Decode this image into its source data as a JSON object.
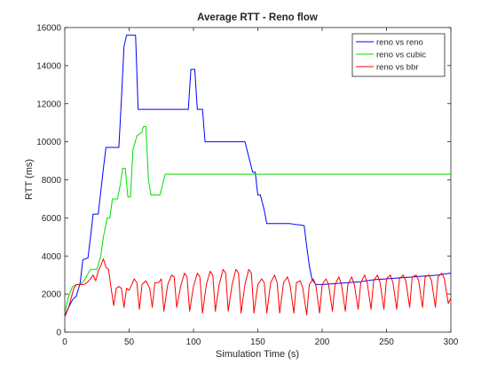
{
  "chart_data": {
    "type": "line",
    "title": "Average RTT - Reno flow",
    "xlabel": "Simulation Time (s)",
    "ylabel": "RTT (ms)",
    "xlim": [
      0,
      300
    ],
    "ylim": [
      0,
      16000
    ],
    "xticks": [
      0,
      50,
      100,
      150,
      200,
      250,
      300
    ],
    "yticks": [
      0,
      2000,
      4000,
      6000,
      8000,
      10000,
      12000,
      14000,
      16000
    ],
    "grid": false,
    "legend_position": "top-right",
    "series": [
      {
        "name": "reno vs reno",
        "color": "#0000ff",
        "points": [
          [
            0,
            900
          ],
          [
            3,
            1300
          ],
          [
            6,
            1700
          ],
          [
            9,
            1900
          ],
          [
            12,
            2600
          ],
          [
            14,
            3800
          ],
          [
            18,
            3900
          ],
          [
            20,
            5000
          ],
          [
            22,
            6200
          ],
          [
            26,
            6200
          ],
          [
            28,
            7400
          ],
          [
            30,
            8600
          ],
          [
            32,
            9700
          ],
          [
            34,
            9700
          ],
          [
            42,
            9700
          ],
          [
            44,
            12200
          ],
          [
            46,
            15000
          ],
          [
            48,
            15600
          ],
          [
            55,
            15600
          ],
          [
            57,
            11700
          ],
          [
            70,
            11700
          ],
          [
            90,
            11700
          ],
          [
            96,
            11700
          ],
          [
            98,
            13800
          ],
          [
            101,
            13800
          ],
          [
            103,
            11700
          ],
          [
            107,
            11700
          ],
          [
            109,
            10000
          ],
          [
            125,
            10000
          ],
          [
            140,
            10000
          ],
          [
            143,
            9200
          ],
          [
            146,
            8400
          ],
          [
            148,
            8400
          ],
          [
            150,
            7200
          ],
          [
            152,
            7200
          ],
          [
            155,
            6400
          ],
          [
            157,
            5700
          ],
          [
            165,
            5700
          ],
          [
            175,
            5700
          ],
          [
            186,
            5600
          ],
          [
            188,
            4500
          ],
          [
            190,
            3500
          ],
          [
            192,
            2800
          ],
          [
            195,
            2500
          ],
          [
            200,
            2500
          ],
          [
            210,
            2550
          ],
          [
            220,
            2600
          ],
          [
            230,
            2650
          ],
          [
            240,
            2750
          ],
          [
            250,
            2800
          ],
          [
            260,
            2850
          ],
          [
            270,
            2900
          ],
          [
            280,
            2950
          ],
          [
            290,
            3000
          ],
          [
            300,
            3100
          ]
        ]
      },
      {
        "name": "reno vs cubic",
        "color": "#00dd00",
        "points": [
          [
            0,
            1000
          ],
          [
            3,
            1900
          ],
          [
            6,
            2400
          ],
          [
            9,
            2500
          ],
          [
            12,
            2500
          ],
          [
            15,
            2700
          ],
          [
            20,
            3300
          ],
          [
            25,
            3300
          ],
          [
            28,
            4000
          ],
          [
            30,
            5000
          ],
          [
            33,
            6000
          ],
          [
            35,
            6000
          ],
          [
            37,
            7000
          ],
          [
            41,
            7000
          ],
          [
            43,
            7700
          ],
          [
            45,
            8600
          ],
          [
            47,
            8600
          ],
          [
            49,
            7100
          ],
          [
            51,
            7100
          ],
          [
            53,
            9600
          ],
          [
            56,
            10300
          ],
          [
            60,
            10500
          ],
          [
            61,
            10800
          ],
          [
            63,
            10800
          ],
          [
            65,
            8000
          ],
          [
            67,
            7200
          ],
          [
            74,
            7200
          ],
          [
            78,
            8300
          ],
          [
            100,
            8300
          ],
          [
            150,
            8300
          ],
          [
            200,
            8300
          ],
          [
            250,
            8300
          ],
          [
            300,
            8300
          ]
        ]
      },
      {
        "name": "reno vs bbr",
        "color": "#ff0000",
        "points": [
          [
            0,
            800
          ],
          [
            3,
            1300
          ],
          [
            5,
            1800
          ],
          [
            7,
            2300
          ],
          [
            9,
            2500
          ],
          [
            12,
            2500
          ],
          [
            15,
            2500
          ],
          [
            18,
            2650
          ],
          [
            20,
            2800
          ],
          [
            22,
            3000
          ],
          [
            24,
            2700
          ],
          [
            26,
            3200
          ],
          [
            28,
            3500
          ],
          [
            30,
            3850
          ],
          [
            32,
            3400
          ],
          [
            34,
            3300
          ],
          [
            36,
            2300
          ],
          [
            38,
            1400
          ],
          [
            40,
            2300
          ],
          [
            42,
            2400
          ],
          [
            44,
            2300
          ],
          [
            46,
            1300
          ],
          [
            48,
            2300
          ],
          [
            50,
            2200
          ],
          [
            52,
            2500
          ],
          [
            54,
            2800
          ],
          [
            56,
            2600
          ],
          [
            58,
            1200
          ],
          [
            60,
            2500
          ],
          [
            63,
            2700
          ],
          [
            66,
            2300
          ],
          [
            68,
            1300
          ],
          [
            70,
            2600
          ],
          [
            73,
            2600
          ],
          [
            75,
            2800
          ],
          [
            77,
            1100
          ],
          [
            80,
            2500
          ],
          [
            83,
            3000
          ],
          [
            85,
            2900
          ],
          [
            87,
            1300
          ],
          [
            90,
            2400
          ],
          [
            93,
            3100
          ],
          [
            95,
            2900
          ],
          [
            97,
            1100
          ],
          [
            100,
            2400
          ],
          [
            103,
            3100
          ],
          [
            105,
            2900
          ],
          [
            107,
            1000
          ],
          [
            110,
            2500
          ],
          [
            113,
            3200
          ],
          [
            115,
            3000
          ],
          [
            117,
            1100
          ],
          [
            120,
            2500
          ],
          [
            123,
            3300
          ],
          [
            125,
            3100
          ],
          [
            127,
            1100
          ],
          [
            130,
            2500
          ],
          [
            133,
            3300
          ],
          [
            135,
            3100
          ],
          [
            137,
            1000
          ],
          [
            140,
            2500
          ],
          [
            143,
            3300
          ],
          [
            145,
            3100
          ],
          [
            147,
            1000
          ],
          [
            150,
            2500
          ],
          [
            153,
            2800
          ],
          [
            155,
            2600
          ],
          [
            157,
            1000
          ],
          [
            160,
            2600
          ],
          [
            163,
            3000
          ],
          [
            165,
            2600
          ],
          [
            167,
            1000
          ],
          [
            170,
            2600
          ],
          [
            173,
            2900
          ],
          [
            175,
            2500
          ],
          [
            178,
            1000
          ],
          [
            180,
            2600
          ],
          [
            183,
            2700
          ],
          [
            185,
            2300
          ],
          [
            188,
            900
          ],
          [
            190,
            2500
          ],
          [
            193,
            2800
          ],
          [
            195,
            2500
          ],
          [
            198,
            1000
          ],
          [
            200,
            2500
          ],
          [
            203,
            2800
          ],
          [
            205,
            2500
          ],
          [
            208,
            1100
          ],
          [
            210,
            2500
          ],
          [
            213,
            2900
          ],
          [
            215,
            2500
          ],
          [
            218,
            1100
          ],
          [
            220,
            2500
          ],
          [
            223,
            2900
          ],
          [
            225,
            2500
          ],
          [
            228,
            1200
          ],
          [
            230,
            2600
          ],
          [
            233,
            3000
          ],
          [
            235,
            2600
          ],
          [
            238,
            1200
          ],
          [
            240,
            2700
          ],
          [
            243,
            3000
          ],
          [
            245,
            2600
          ],
          [
            248,
            1200
          ],
          [
            250,
            2800
          ],
          [
            253,
            3000
          ],
          [
            255,
            2600
          ],
          [
            258,
            1200
          ],
          [
            260,
            2800
          ],
          [
            263,
            3000
          ],
          [
            265,
            2700
          ],
          [
            268,
            1300
          ],
          [
            270,
            2900
          ],
          [
            273,
            3000
          ],
          [
            275,
            2700
          ],
          [
            278,
            1300
          ],
          [
            280,
            2900
          ],
          [
            283,
            3000
          ],
          [
            285,
            2700
          ],
          [
            288,
            1300
          ],
          [
            290,
            2900
          ],
          [
            293,
            3100
          ],
          [
            295,
            2800
          ],
          [
            298,
            1500
          ],
          [
            300,
            1800
          ]
        ]
      }
    ]
  }
}
